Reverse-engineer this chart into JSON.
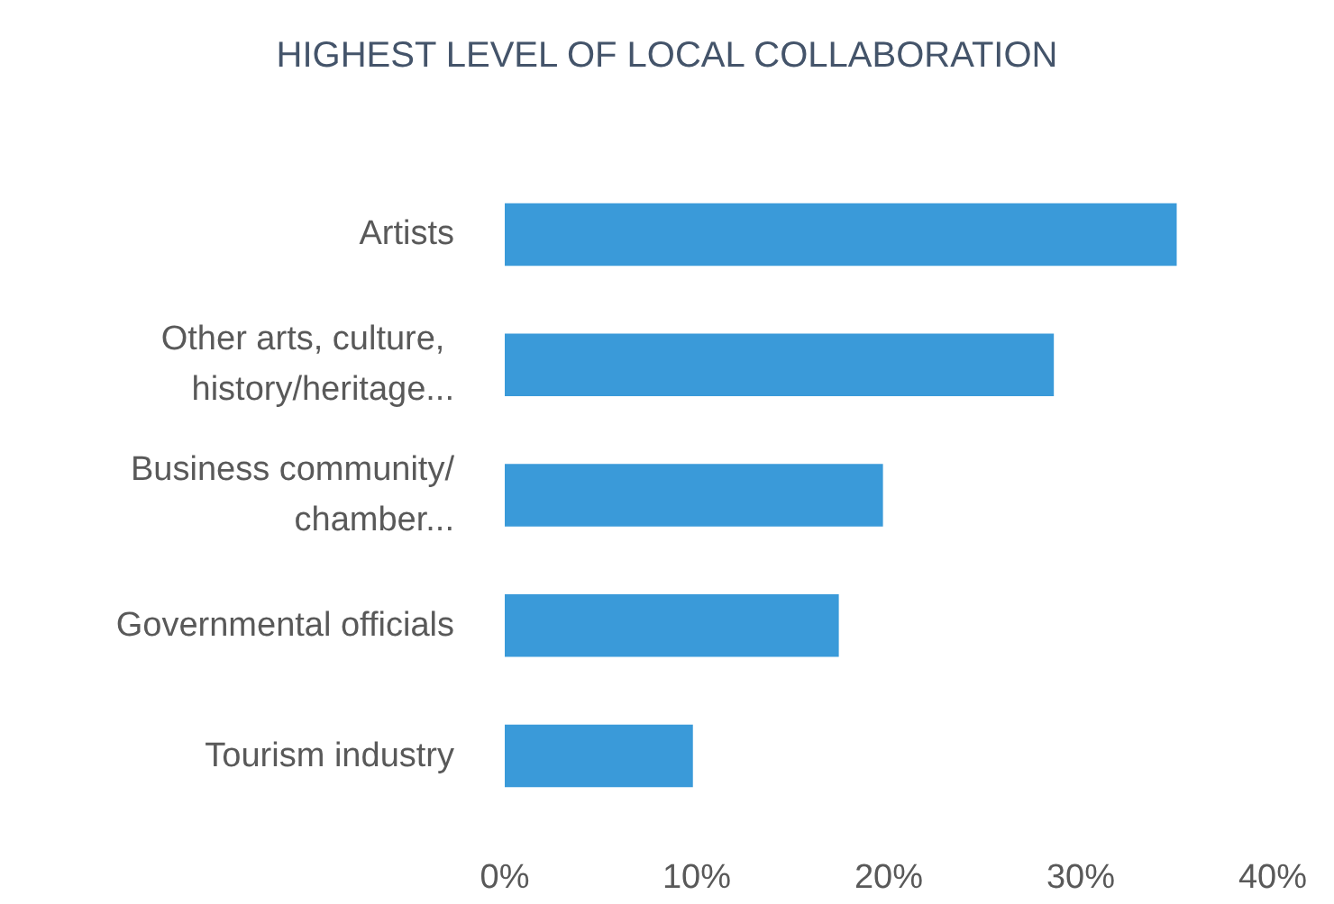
{
  "chart_data": {
    "type": "bar",
    "orientation": "horizontal",
    "title": "HIGHEST LEVEL OF LOCAL COLLABORATION",
    "categories": [
      "Artists",
      "Other arts, culture, history/heritage...",
      "Business community/chamber...",
      "Governmental officials",
      "Tourism industry"
    ],
    "values": [
      35,
      28.6,
      19.7,
      17.4,
      9.8
    ],
    "color": "#3a9ad9",
    "xlim": [
      0,
      40
    ],
    "xticks": [
      {
        "value": 0,
        "label": "0%"
      },
      {
        "value": 10,
        "label": "10%"
      },
      {
        "value": 20,
        "label": "20%"
      },
      {
        "value": 30,
        "label": "30%"
      },
      {
        "value": 40,
        "label": "40%"
      }
    ],
    "grid": false
  }
}
